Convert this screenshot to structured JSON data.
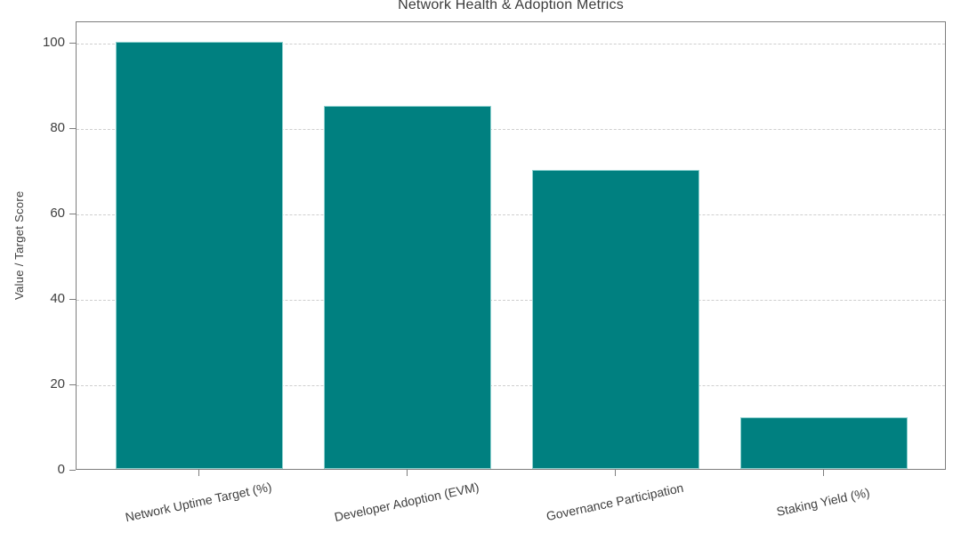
{
  "chart_data": {
    "type": "bar",
    "title": "Network Health & Adoption Metrics",
    "xlabel": "",
    "ylabel": "Value / Target Score",
    "categories": [
      "Network Uptime Target (%)",
      "Developer Adoption (EVM)",
      "Governance Participation",
      "Staking Yield (%)"
    ],
    "values": [
      100,
      85,
      70,
      12
    ],
    "ylim": [
      0,
      105
    ],
    "yticks": [
      0,
      20,
      40,
      60,
      80,
      100
    ],
    "grid": "horizontal-dashed",
    "legend": "none",
    "x_tick_rotation_deg": 12,
    "colors": {
      "bar_fill": "#008080",
      "bar_edge": "#8ed1cf",
      "gridline": "#cfcfcf",
      "spine": "#7d7d7d",
      "text": "#3f3f3f",
      "title_text": "#3c3c3c",
      "background": "#ffffff"
    }
  }
}
